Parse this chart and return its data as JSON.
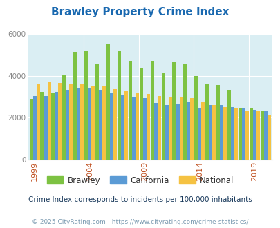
{
  "title": "Brawley Property Crime Index",
  "years": [
    1999,
    2000,
    2001,
    2002,
    2003,
    2004,
    2005,
    2006,
    2007,
    2008,
    2009,
    2010,
    2011,
    2012,
    2013,
    2014,
    2015,
    2016,
    2017,
    2018,
    2019,
    2020
  ],
  "brawley": [
    2900,
    3250,
    3200,
    4050,
    5150,
    5200,
    4550,
    5550,
    5200,
    4700,
    4400,
    4700,
    4150,
    4650,
    4600,
    4000,
    3650,
    3580,
    3350,
    2450,
    2450,
    2350
  ],
  "california": [
    3050,
    3050,
    3250,
    3350,
    3400,
    3400,
    3350,
    3200,
    3100,
    2980,
    2950,
    2700,
    2620,
    2680,
    2750,
    2480,
    2600,
    2600,
    2520,
    2450,
    2380,
    2350
  ],
  "national": [
    3650,
    3700,
    3680,
    3650,
    3600,
    3530,
    3490,
    3370,
    3320,
    3220,
    3150,
    3050,
    3000,
    2980,
    2930,
    2750,
    2620,
    2500,
    2460,
    2350,
    2300,
    2100
  ],
  "bar_color_brawley": "#7dc242",
  "bar_color_california": "#5b9bd5",
  "bar_color_national": "#f5c242",
  "bg_color": "#daeef3",
  "ylim": [
    0,
    6000
  ],
  "yticks": [
    0,
    2000,
    4000,
    6000
  ],
  "subtitle": "Crime Index corresponds to incidents per 100,000 inhabitants",
  "footer": "© 2025 CityRating.com - https://www.cityrating.com/crime-statistics/",
  "title_color": "#1a69b0",
  "subtitle_color": "#1a3a5c",
  "footer_color": "#7a9ab0",
  "xtick_color": "#c05020",
  "ytick_color": "#888888",
  "tick_label_years": [
    1999,
    2004,
    2009,
    2014,
    2019
  ],
  "grid_color": "#ffffff"
}
